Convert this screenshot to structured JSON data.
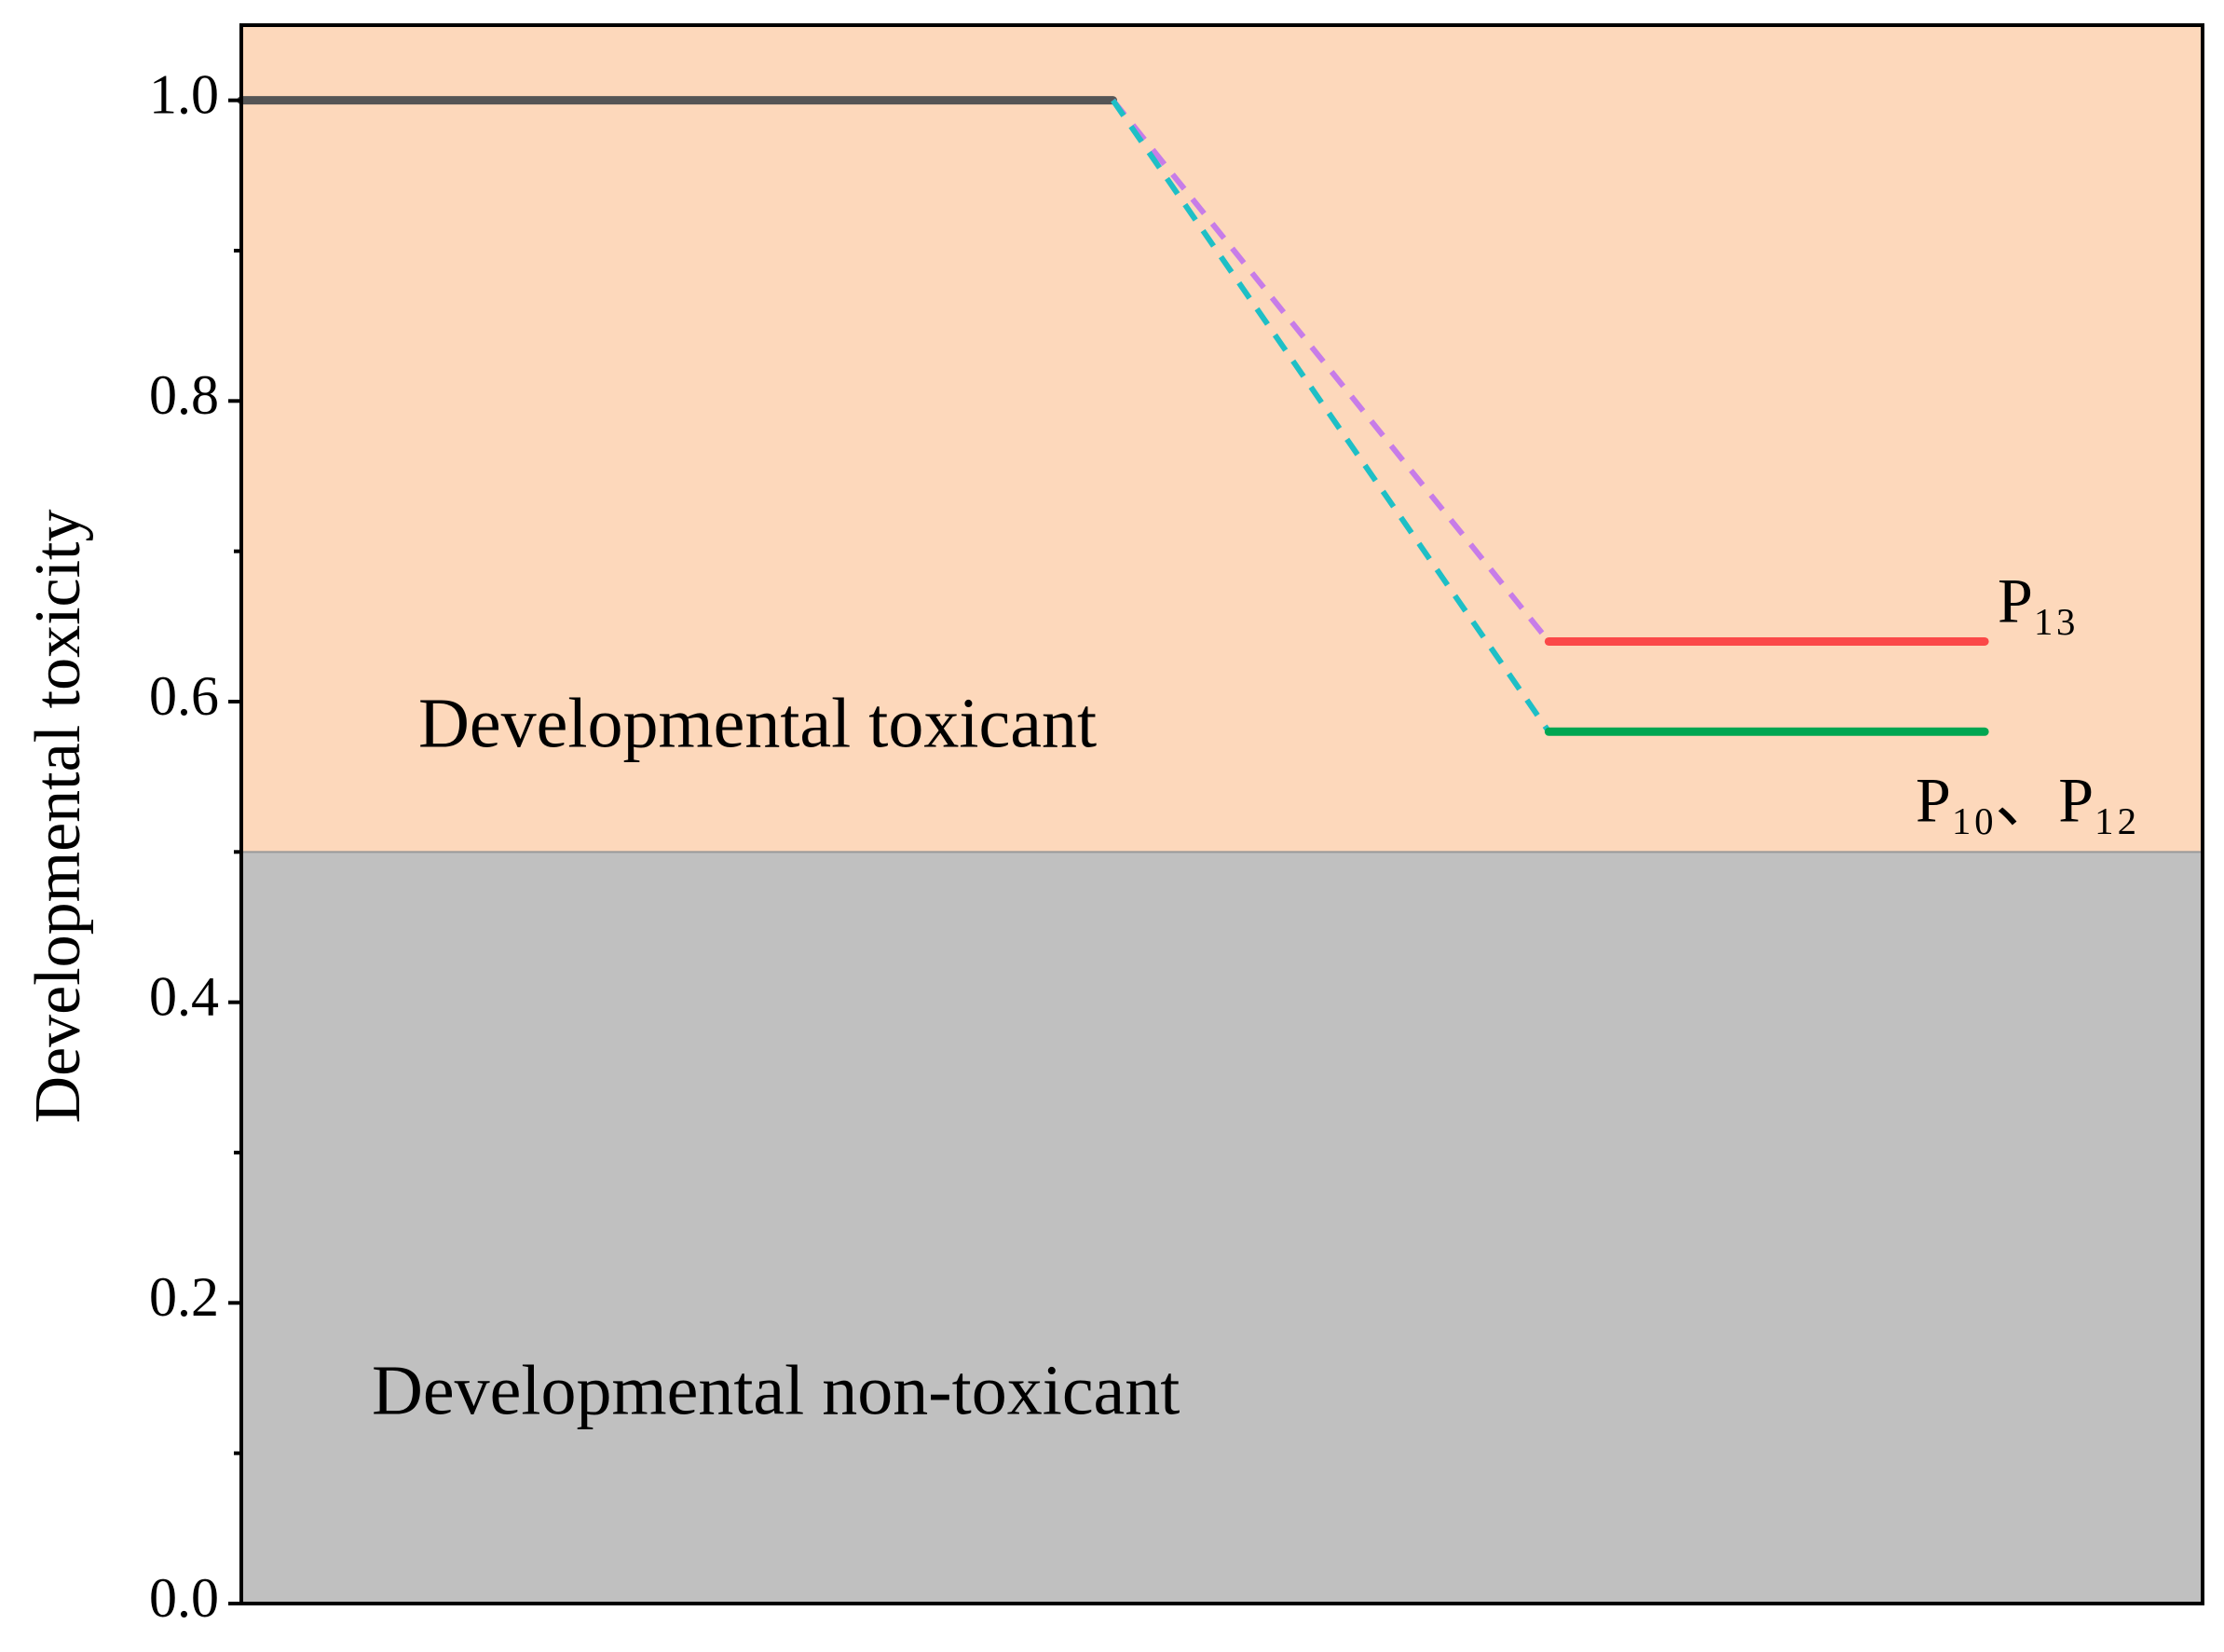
{
  "chart_data": {
    "type": "line",
    "y_label": "Developmental toxicity",
    "x": [
      0,
      2,
      3,
      4
    ],
    "xlim": [
      0,
      4.5
    ],
    "ylim": [
      0,
      1.05
    ],
    "yticks": [
      {
        "value": 0,
        "label": "0.0"
      },
      0.2,
      0.4,
      0.6,
      0.8,
      {
        "value": 1,
        "label": "1.0"
      }
    ],
    "yminorticks": [
      0.1,
      0.3,
      0.5,
      0.7,
      0.9
    ],
    "regions": [
      {
        "label": "Developmental toxicant",
        "from": 0.5,
        "to": 1.05,
        "color": "#fdd8bb"
      },
      {
        "label": "Developmental non-toxicant",
        "from": 0,
        "to": 0.5,
        "color": "#c0c0c0"
      }
    ],
    "series": [
      {
        "color": "#555555",
        "dashed": false,
        "values": [
          1.0,
          1.0,
          null,
          null
        ]
      },
      {
        "color": "#c77ce8",
        "dashed": true,
        "values": [
          null,
          1.0,
          0.64,
          null
        ]
      },
      {
        "color": "#1ebfc6",
        "dashed": true,
        "values": [
          null,
          1.0,
          0.58,
          null
        ]
      },
      {
        "color": "#fb4848",
        "dashed": false,
        "values": [
          null,
          null,
          0.64,
          0.64
        ]
      },
      {
        "color": "#00a651",
        "dashed": false,
        "values": [
          null,
          null,
          0.58,
          0.58
        ]
      }
    ],
    "annotations": [
      "P₁₃",
      "P₁₀、P₁₂"
    ]
  }
}
